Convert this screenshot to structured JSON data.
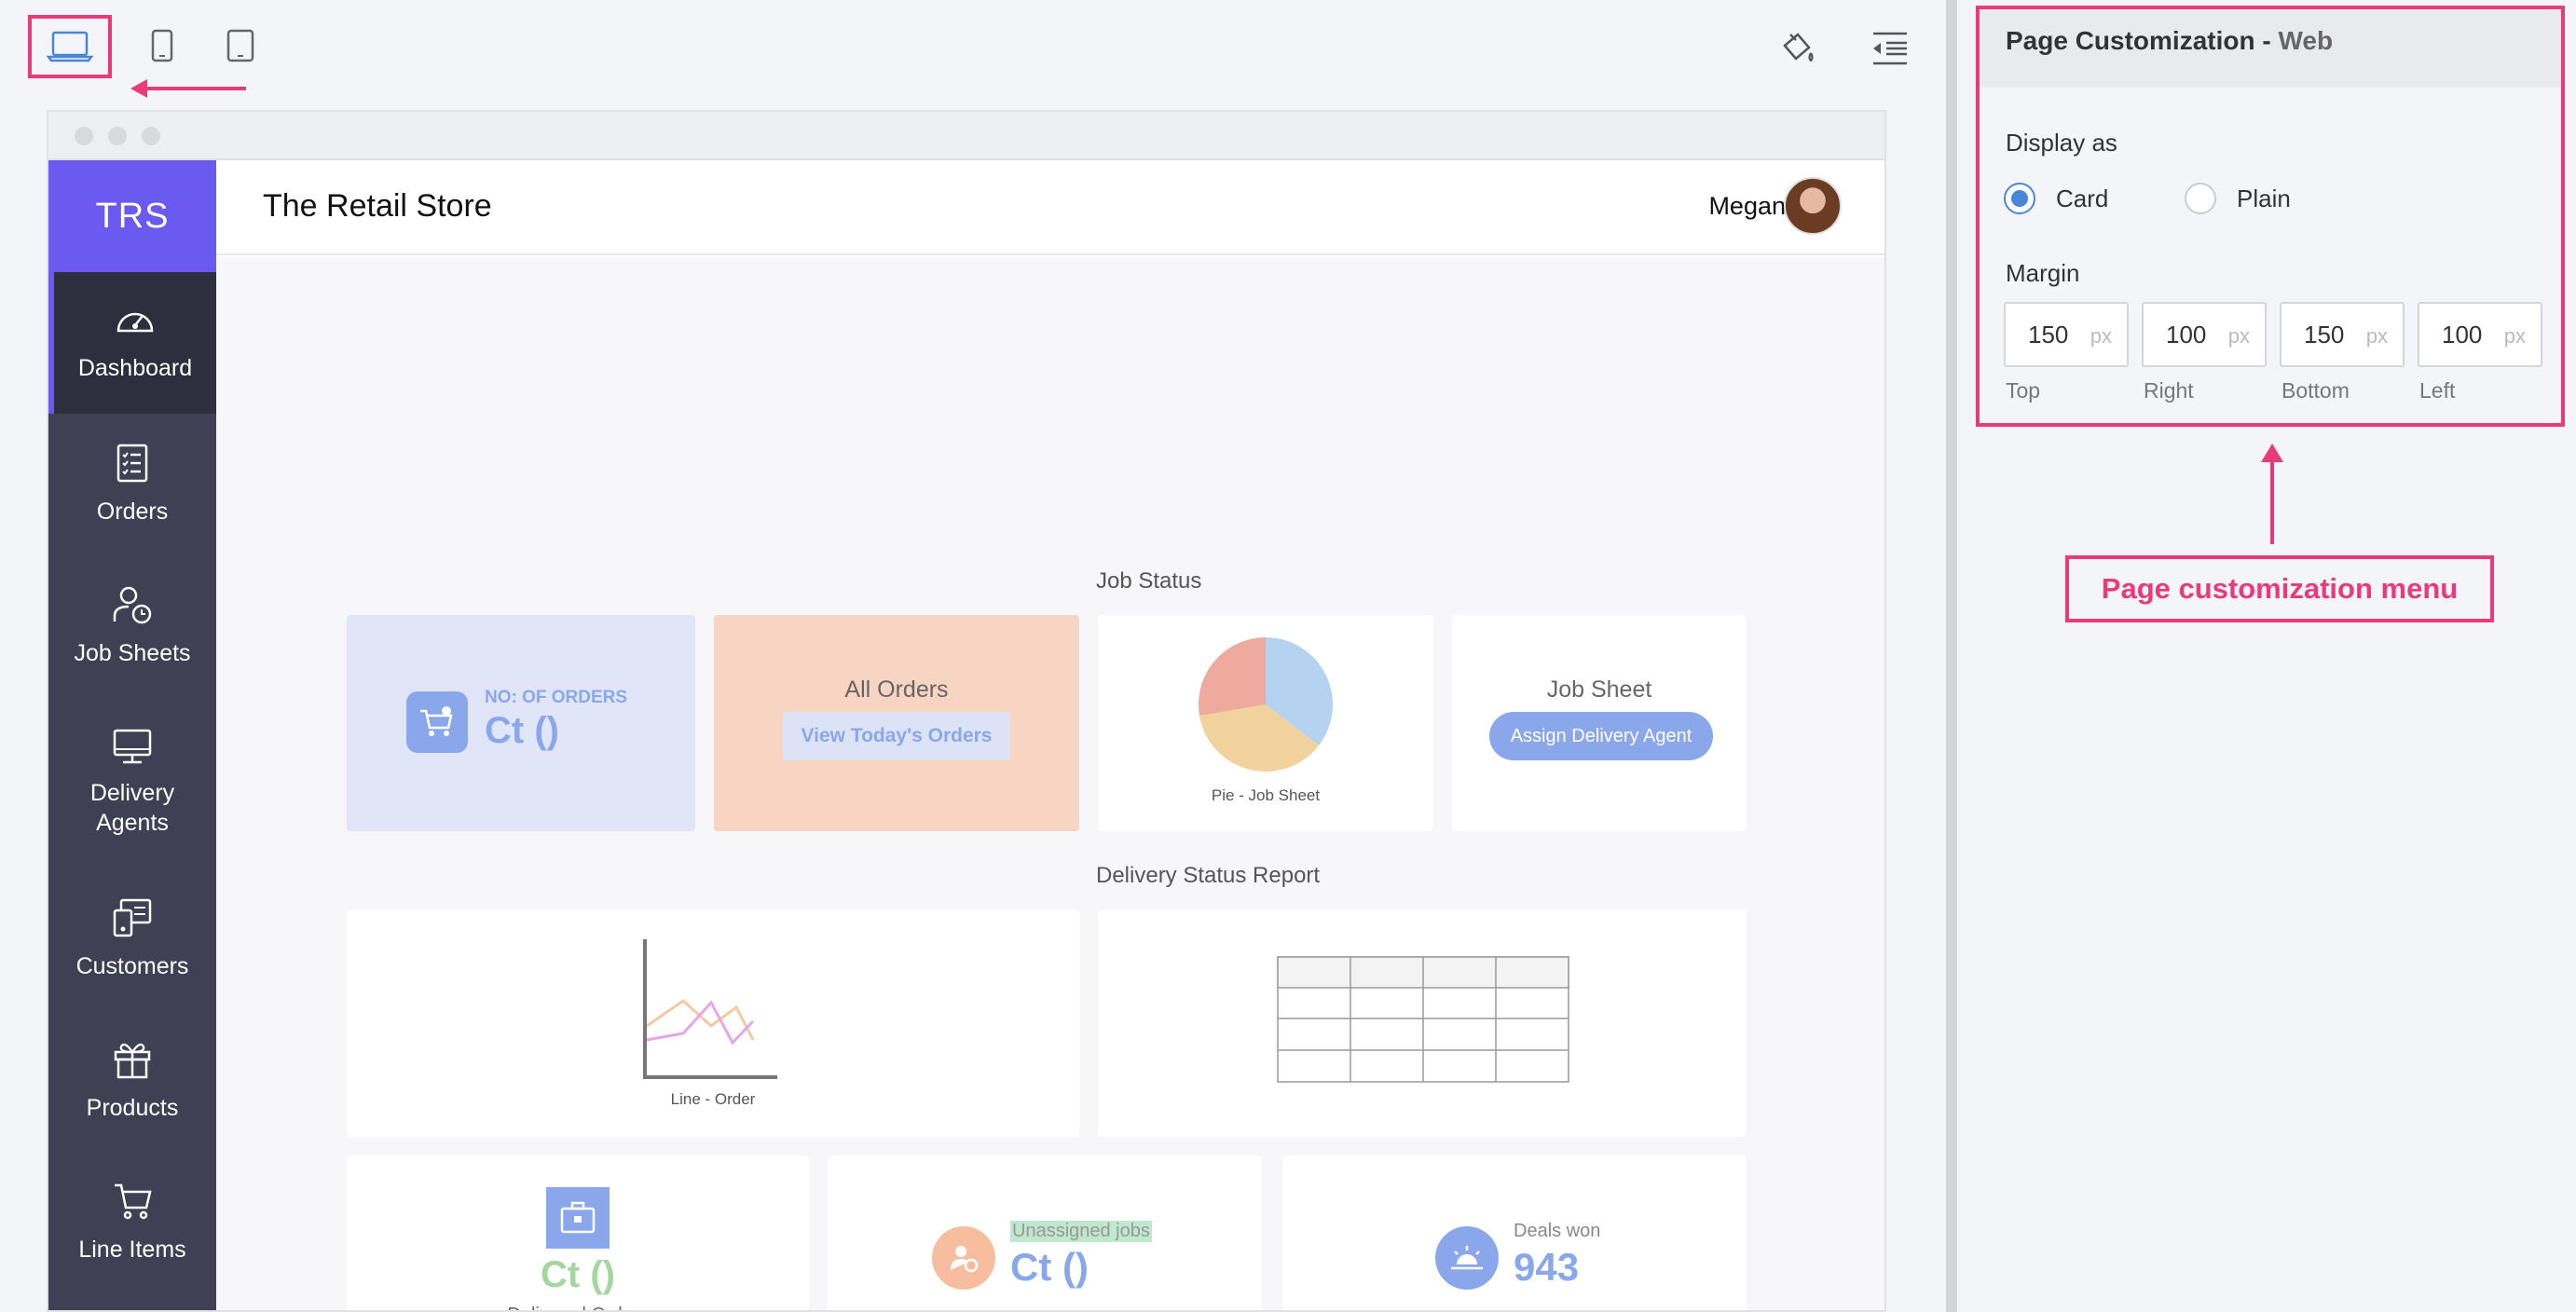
{
  "toolbar": {
    "device_desktop_icon": "laptop-icon",
    "device_mobile_icon": "mobile-icon",
    "device_tablet_icon": "tablet-icon",
    "theme_icon": "paint-bucket-icon",
    "layout_icon": "layout-settings-icon"
  },
  "app": {
    "brand": "TRS",
    "title": "The Retail Store",
    "user": "Megan",
    "nav": [
      {
        "label": "Dashboard",
        "icon": "speedometer-icon"
      },
      {
        "label": "Orders",
        "icon": "checklist-icon"
      },
      {
        "label": "Job Sheets",
        "icon": "user-clock-icon"
      },
      {
        "label": "Delivery Agents",
        "icon": "monitor-icon"
      },
      {
        "label": "Customers",
        "icon": "id-card-icon"
      },
      {
        "label": "Products",
        "icon": "gift-icon"
      },
      {
        "label": "Line Items",
        "icon": "cart-icon"
      }
    ]
  },
  "dashboard": {
    "job_status_title": "Job Status",
    "orders_card": {
      "caption": "NO: OF ORDERS",
      "value": "Ct ()"
    },
    "all_orders_card": {
      "title": "All Orders",
      "button": "View Today's Orders"
    },
    "pie_card": {
      "caption": "Pie - Job Sheet"
    },
    "job_sheet_card": {
      "title": "Job Sheet",
      "button": "Assign Delivery Agent"
    },
    "delivery_title": "Delivery Status Report",
    "line_card": {
      "caption": "Line - Order"
    },
    "delivered_card": {
      "value": "Ct ()",
      "caption": "Delivered Orders"
    },
    "unassigned_card": {
      "caption": "Unassigned jobs",
      "value": "Ct ()"
    },
    "deals_card": {
      "caption": "Deals won",
      "value": "943"
    }
  },
  "panel": {
    "title": "Page Customization",
    "title_sep": " - ",
    "subtitle": "Web",
    "display_label": "Display as",
    "options": [
      {
        "label": "Card",
        "checked": true
      },
      {
        "label": "Plain",
        "checked": false
      }
    ],
    "margin_label": "Margin",
    "margins": [
      {
        "value": "150",
        "unit": "px",
        "caption": "Top"
      },
      {
        "value": "100",
        "unit": "px",
        "caption": "Right"
      },
      {
        "value": "150",
        "unit": "px",
        "caption": "Bottom"
      },
      {
        "value": "100",
        "unit": "px",
        "caption": "Left"
      }
    ]
  },
  "annotation": {
    "callout": "Page customization menu",
    "highlight_color": "#ea3a79"
  }
}
